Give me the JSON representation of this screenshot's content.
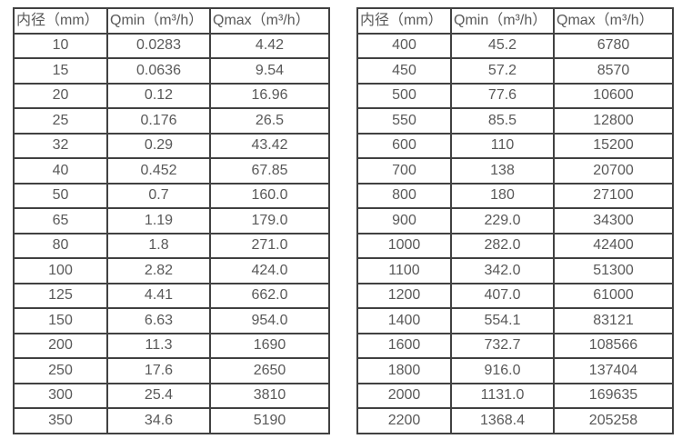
{
  "page": {
    "background": "#ffffff"
  },
  "colors": {
    "border": "#414141",
    "text": "#595959",
    "cell_background": "#ffffff"
  },
  "tables": [
    {
      "name": "flow-table-dn10-350",
      "headers": [
        "内径（mm）",
        "Qmin（m³/h）",
        "Qmax（m³/h）"
      ],
      "rows": [
        [
          "10",
          "0.0283",
          "4.42"
        ],
        [
          "15",
          "0.0636",
          "9.54"
        ],
        [
          "20",
          "0.12",
          "16.96"
        ],
        [
          "25",
          "0.176",
          "26.5"
        ],
        [
          "32",
          "0.29",
          "43.42"
        ],
        [
          "40",
          "0.452",
          "67.85"
        ],
        [
          "50",
          "0.7",
          "160.0"
        ],
        [
          "65",
          "1.19",
          "179.0"
        ],
        [
          "80",
          "1.8",
          "271.0"
        ],
        [
          "100",
          "2.82",
          "424.0"
        ],
        [
          "125",
          "4.41",
          "662.0"
        ],
        [
          "150",
          "6.63",
          "954.0"
        ],
        [
          "200",
          "11.3",
          "1690"
        ],
        [
          "250",
          "17.6",
          "2650"
        ],
        [
          "300",
          "25.4",
          "3810"
        ],
        [
          "350",
          "34.6",
          "5190"
        ]
      ]
    },
    {
      "name": "flow-table-dn400-2200",
      "headers": [
        "内径（mm）",
        "Qmin（m³/h）",
        "Qmax（m³/h）"
      ],
      "rows": [
        [
          "400",
          "45.2",
          "6780"
        ],
        [
          "450",
          "57.2",
          "8570"
        ],
        [
          "500",
          "77.6",
          "10600"
        ],
        [
          "550",
          "85.5",
          "12800"
        ],
        [
          "600",
          "110",
          "15200"
        ],
        [
          "700",
          "138",
          "20700"
        ],
        [
          "800",
          "180",
          "27100"
        ],
        [
          "900",
          "229.0",
          "34300"
        ],
        [
          "1000",
          "282.0",
          "42400"
        ],
        [
          "1100",
          "342.0",
          "51300"
        ],
        [
          "1200",
          "407.0",
          "61000"
        ],
        [
          "1400",
          "554.1",
          "83121"
        ],
        [
          "1600",
          "732.7",
          "108566"
        ],
        [
          "1800",
          "916.0",
          "137404"
        ],
        [
          "2000",
          "1131.0",
          "169635"
        ],
        [
          "2200",
          "1368.4",
          "205258"
        ]
      ]
    }
  ]
}
